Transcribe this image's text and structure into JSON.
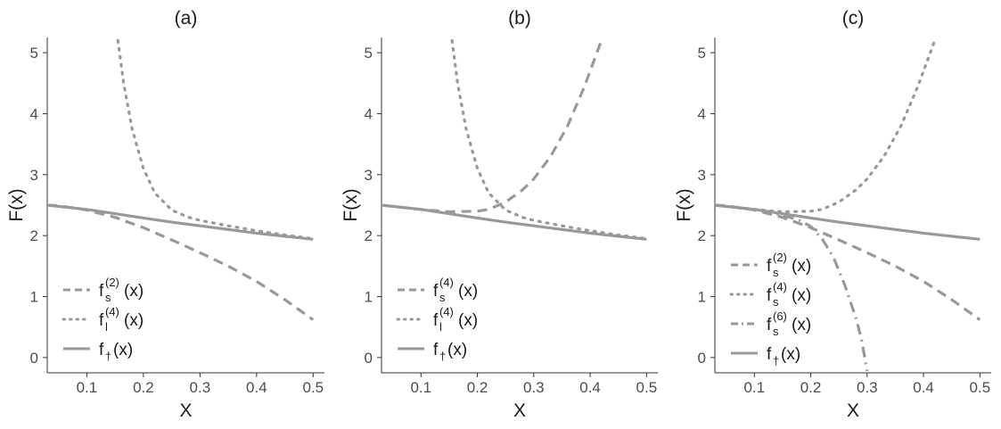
{
  "chart_data": [
    {
      "type": "line",
      "title": "(a)",
      "xlabel": "X",
      "ylabel": "F(x)",
      "xlim": [
        0.03,
        0.52
      ],
      "ylim": [
        -0.25,
        5.25
      ],
      "xticks": [
        0.1,
        0.2,
        0.3,
        0.4,
        0.5
      ],
      "xtick_labels": [
        "0.1",
        "0.2",
        "0.3",
        "0.4",
        "0.5"
      ],
      "yticks": [
        0,
        1,
        2,
        3,
        4,
        5
      ],
      "ytick_labels": [
        "0",
        "1",
        "2",
        "3",
        "4",
        "5"
      ],
      "grid": false,
      "legend_position": "bottom-left",
      "series": [
        {
          "name": "f_s^(2)(x)",
          "label": {
            "base": "f",
            "sub": "s",
            "sup": "(2)",
            "tail": "(x)"
          },
          "style": "dashed",
          "x": [
            0.03,
            0.05,
            0.08,
            0.1,
            0.15,
            0.2,
            0.25,
            0.3,
            0.35,
            0.4,
            0.45,
            0.5
          ],
          "y": [
            2.5,
            2.49,
            2.45,
            2.42,
            2.3,
            2.13,
            1.93,
            1.72,
            1.5,
            1.25,
            0.95,
            0.62
          ]
        },
        {
          "name": "f_l^(4)(x)",
          "label": {
            "base": "f",
            "sub": "l",
            "sup": "(4)",
            "tail": "(x)"
          },
          "style": "dotted",
          "x": [
            0.155,
            0.165,
            0.18,
            0.2,
            0.22,
            0.25,
            0.28,
            0.3,
            0.35,
            0.4,
            0.45,
            0.5
          ],
          "y": [
            5.2,
            4.5,
            3.75,
            3.1,
            2.7,
            2.42,
            2.3,
            2.25,
            2.16,
            2.08,
            2.01,
            1.95
          ]
        },
        {
          "name": "f_†(x)",
          "label": {
            "base": "f",
            "sub": "†",
            "sup": "",
            "tail": "(x)"
          },
          "style": "solid",
          "x": [
            0.03,
            0.05,
            0.1,
            0.15,
            0.2,
            0.25,
            0.3,
            0.35,
            0.4,
            0.45,
            0.5
          ],
          "y": [
            2.5,
            2.48,
            2.43,
            2.36,
            2.29,
            2.22,
            2.16,
            2.1,
            2.04,
            1.99,
            1.94
          ]
        }
      ]
    },
    {
      "type": "line",
      "title": "(b)",
      "xlabel": "X",
      "ylabel": "F(x)",
      "xlim": [
        0.03,
        0.52
      ],
      "ylim": [
        -0.25,
        5.25
      ],
      "xticks": [
        0.1,
        0.2,
        0.3,
        0.4,
        0.5
      ],
      "xtick_labels": [
        "0.1",
        "0.2",
        "0.3",
        "0.4",
        "0.5"
      ],
      "yticks": [
        0,
        1,
        2,
        3,
        4,
        5
      ],
      "ytick_labels": [
        "0",
        "1",
        "2",
        "3",
        "4",
        "5"
      ],
      "grid": false,
      "legend_position": "bottom-left",
      "series": [
        {
          "name": "f_s^(4)(x)",
          "label": {
            "base": "f",
            "sub": "s",
            "sup": "(4)",
            "tail": "(x)"
          },
          "style": "dashed",
          "x": [
            0.03,
            0.05,
            0.1,
            0.15,
            0.2,
            0.22,
            0.25,
            0.28,
            0.3,
            0.33,
            0.36,
            0.39,
            0.42
          ],
          "y": [
            2.5,
            2.48,
            2.43,
            2.39,
            2.4,
            2.43,
            2.55,
            2.75,
            2.93,
            3.3,
            3.8,
            4.45,
            5.2
          ]
        },
        {
          "name": "f_l^(4)(x)",
          "label": {
            "base": "f",
            "sub": "l",
            "sup": "(4)",
            "tail": "(x)"
          },
          "style": "dotted",
          "x": [
            0.155,
            0.165,
            0.18,
            0.2,
            0.22,
            0.25,
            0.28,
            0.3,
            0.35,
            0.4,
            0.45,
            0.5
          ],
          "y": [
            5.2,
            4.5,
            3.75,
            3.1,
            2.7,
            2.42,
            2.3,
            2.25,
            2.16,
            2.08,
            2.01,
            1.95
          ]
        },
        {
          "name": "f_†(x)",
          "label": {
            "base": "f",
            "sub": "†",
            "sup": "",
            "tail": "(x)"
          },
          "style": "solid",
          "x": [
            0.03,
            0.05,
            0.1,
            0.15,
            0.2,
            0.25,
            0.3,
            0.35,
            0.4,
            0.45,
            0.5
          ],
          "y": [
            2.5,
            2.48,
            2.43,
            2.36,
            2.29,
            2.22,
            2.16,
            2.1,
            2.04,
            1.99,
            1.94
          ]
        }
      ]
    },
    {
      "type": "line",
      "title": "(c)",
      "xlabel": "X",
      "ylabel": "F(x)",
      "xlim": [
        0.03,
        0.52
      ],
      "ylim": [
        -0.25,
        5.25
      ],
      "xticks": [
        0.1,
        0.2,
        0.3,
        0.4,
        0.5
      ],
      "xtick_labels": [
        "0.1",
        "0.2",
        "0.3",
        "0.4",
        "0.5"
      ],
      "yticks": [
        0,
        1,
        2,
        3,
        4,
        5
      ],
      "ytick_labels": [
        "0",
        "1",
        "2",
        "3",
        "4",
        "5"
      ],
      "grid": false,
      "legend_position": "bottom-left",
      "series": [
        {
          "name": "f_s^(2)(x)",
          "label": {
            "base": "f",
            "sub": "s",
            "sup": "(2)",
            "tail": "(x)"
          },
          "style": "dashed",
          "x": [
            0.03,
            0.05,
            0.08,
            0.1,
            0.15,
            0.2,
            0.25,
            0.3,
            0.35,
            0.4,
            0.45,
            0.5
          ],
          "y": [
            2.5,
            2.49,
            2.45,
            2.42,
            2.3,
            2.13,
            1.93,
            1.72,
            1.5,
            1.25,
            0.95,
            0.62
          ]
        },
        {
          "name": "f_s^(4)(x)",
          "label": {
            "base": "f",
            "sub": "s",
            "sup": "(4)",
            "tail": "(x)"
          },
          "style": "dotted",
          "x": [
            0.03,
            0.05,
            0.1,
            0.15,
            0.2,
            0.22,
            0.25,
            0.28,
            0.3,
            0.33,
            0.36,
            0.39,
            0.42
          ],
          "y": [
            2.5,
            2.48,
            2.43,
            2.39,
            2.4,
            2.43,
            2.55,
            2.75,
            2.93,
            3.3,
            3.8,
            4.45,
            5.2
          ]
        },
        {
          "name": "f_s^(6)(x)",
          "label": {
            "base": "f",
            "sub": "s",
            "sup": "(6)",
            "tail": "(x)"
          },
          "style": "dashdot",
          "x": [
            0.03,
            0.05,
            0.1,
            0.15,
            0.18,
            0.2,
            0.22,
            0.24,
            0.26,
            0.28,
            0.29,
            0.3
          ],
          "y": [
            2.5,
            2.48,
            2.43,
            2.34,
            2.25,
            2.15,
            1.95,
            1.65,
            1.2,
            0.65,
            0.3,
            -0.22
          ]
        },
        {
          "name": "f_†(x)",
          "label": {
            "base": "f",
            "sub": "†",
            "sup": "",
            "tail": "(x)"
          },
          "style": "solid",
          "x": [
            0.03,
            0.05,
            0.1,
            0.15,
            0.2,
            0.25,
            0.3,
            0.35,
            0.4,
            0.45,
            0.5
          ],
          "y": [
            2.5,
            2.48,
            2.43,
            2.36,
            2.29,
            2.22,
            2.16,
            2.1,
            2.04,
            1.99,
            1.94
          ]
        }
      ]
    }
  ],
  "colors": {
    "line": "#999999",
    "axis": "#333333",
    "tick_text": "#4d4d4d",
    "title_text": "#1a1a1a"
  }
}
